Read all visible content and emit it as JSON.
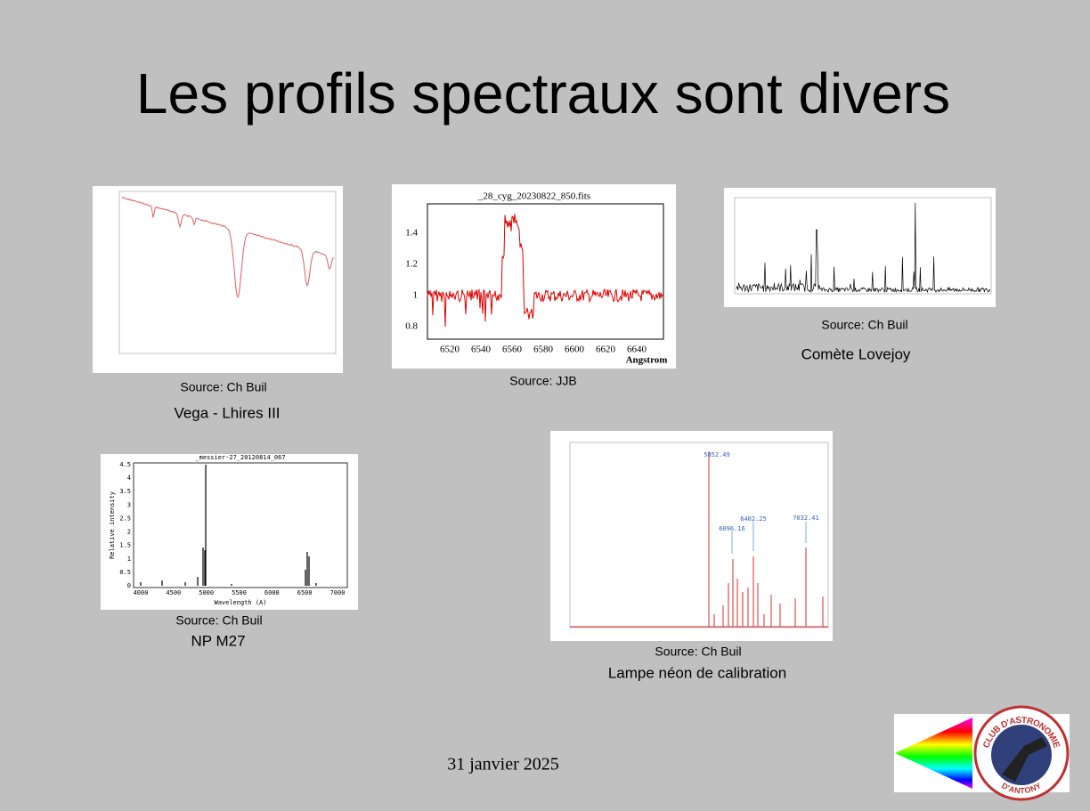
{
  "title": "Les profils spectraux sont divers",
  "date": "31 janvier 2025",
  "figures": [
    {
      "source": "Source: Ch Buil",
      "caption": "Vega - Lhires III"
    },
    {
      "title": "_28_cyg_20230822_850.fits",
      "yticks": [
        "1.4",
        "1.2",
        "1",
        "0.8"
      ],
      "xticks": [
        "6520",
        "6540",
        "6560",
        "6580",
        "6600",
        "6620",
        "6640"
      ],
      "xlabel": "Angstrom",
      "source": "Source: JJB"
    },
    {
      "source": "Source: Ch Buil",
      "caption": "Comète Lovejoy"
    },
    {
      "title": "_messier-27_20120814_067",
      "ylabel": "Relative intensity",
      "xlabel": "Wavelength (A)",
      "yticks": [
        "0",
        "0.5",
        "1",
        "1.5",
        "2",
        "2.5",
        "3",
        "3.5",
        "4",
        "4.5"
      ],
      "xticks": [
        "4000",
        "4500",
        "5000",
        "5500",
        "6000",
        "6500",
        "7000"
      ],
      "source": "Source: Ch Buil",
      "caption": "NP M27"
    },
    {
      "peak_labels": [
        "5852.49",
        "6096.16",
        "6402.25",
        "7032.41"
      ],
      "source": "Source: Ch Buil",
      "caption": "Lampe néon de calibration"
    }
  ],
  "logo": {
    "top": "CLUB D'ASTRONOMIE",
    "bottom": "D'ANTONY"
  }
}
